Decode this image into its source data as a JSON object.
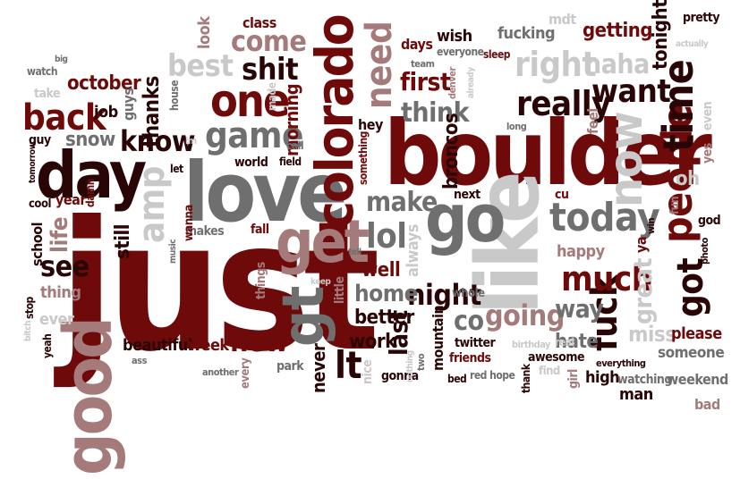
{
  "palette": {
    "dark": "#6e0a0a",
    "black": "#2a0505",
    "rose": "#a57a7a",
    "grey": "#6f6f6f",
    "light": "#c9c9c9"
  },
  "words": {
    "just": "just",
    "love": "love",
    "boulder": "boulder",
    "like": "like",
    "good": "good",
    "day": "day",
    "go": "go",
    "get": "get",
    "colorado": "colorado",
    "now": "now",
    "people": "people",
    "time": "time",
    "today": "today",
    "one": "one",
    "game": "game",
    "really": "really",
    "back": "back",
    "gt": "gt",
    "lt": "lt",
    "got": "got",
    "fuck": "fuck",
    "much": "much",
    "need": "need",
    "right": "right",
    "want": "want",
    "know": "know",
    "amp": "amp",
    "lol": "lol",
    "night": "night",
    "shit": "shit",
    "come": "come",
    "best": "best",
    "make": "make",
    "think": "think",
    "new": "new",
    "going": "going",
    "see": "see",
    "home": "home",
    "haha": "haha",
    "first": "first",
    "life": "life",
    "thanks": "thanks",
    "october": "october",
    "snow": "snow",
    "still": "still",
    "great": "great",
    "way": "way",
    "co": "co",
    "last": "last",
    "work": "work",
    "better": "better",
    "miss": "miss",
    "hate": "hate",
    "please": "please",
    "someone": "someone",
    "happy": "happy",
    "broncos": "broncos",
    "well": "well",
    "getting": "getting",
    "fucking": "fucking",
    "tonight": "tonight",
    "wish": "wish",
    "days": "days",
    "morning": "morning",
    "never": "never",
    "beautiful": "beautiful",
    "week": "week",
    "oh": "oh",
    "yes": "yes",
    "even": "even",
    "always": "always",
    "mountain": "mountain",
    "high": "high",
    "man": "man",
    "weekend": "weekend",
    "bad": "bad",
    "job": "job",
    "guys": "guys",
    "school": "school",
    "year": "year",
    "thing": "thing",
    "ever": "ever",
    "feel": "feel",
    "pretty": "pretty",
    "mdt": "mdt",
    "class": "class",
    "look": "look",
    "hey": "hey",
    "ya": "ya",
    "twitter": "twitter",
    "friends": "friends",
    "awesome": "awesome",
    "watching": "watching",
    "girl": "girl",
    "everything": "everything",
    "god": "god",
    "fun": "fun",
    "cu": "cu",
    "next": "next",
    "whole": "whole",
    "little": "little",
    "nice": "nice",
    "gonna": "gonna",
    "park": "park",
    "every": "every",
    "another": "another",
    "fall": "fall",
    "makes": "makes",
    "things": "things",
    "wanna": "wanna",
    "damn": "damn",
    "house": "house",
    "made": "made",
    "world": "world",
    "field": "field",
    "call": "call",
    "let": "let",
    "im": "im",
    "guy": "guy",
    "tomorrow": "tomorrow",
    "cool": "cool",
    "take": "take",
    "watch": "watch",
    "big": "big",
    "stop": "stop",
    "bitch": "bitch",
    "yeah": "yeah",
    "ass": "ass",
    "music": "music",
    "keep": "keep",
    "tell": "tell",
    "something": "something",
    "nothing": "nothing",
    "two": "two",
    "bed": "bed",
    "red": "red",
    "hope": "hope",
    "birthday": "birthday",
    "real": "real",
    "thank": "thank",
    "find": "find",
    "win": "win",
    "photo": "photo",
    "long": "long",
    "team": "team",
    "everyone": "everyone",
    "sleep": "sleep",
    "denver": "denver",
    "already": "already",
    "actually": "actually"
  }
}
